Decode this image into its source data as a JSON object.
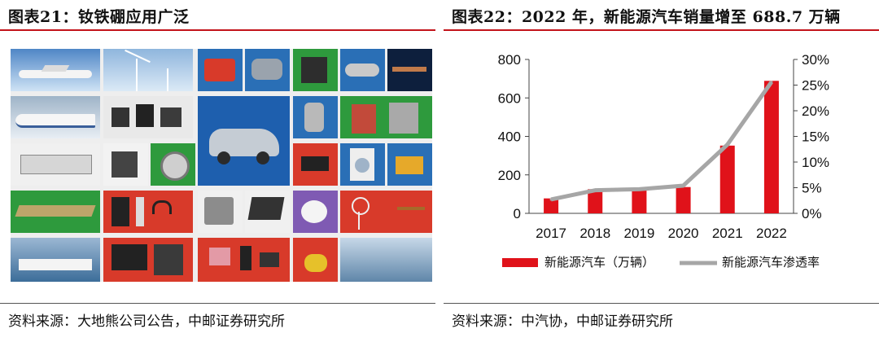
{
  "left_panel": {
    "title": "图表21：钕铁硼应用广泛",
    "source": "资料来源：大地熊公司公告，中邮证券研究所"
  },
  "right_panel": {
    "title": "图表22：2022 年，新能源汽车销量增至 688.7 万辆",
    "source": "资料来源：中汽协，中邮证券研究所"
  },
  "colors": {
    "accent": "#c3131b",
    "bar": "#e0121a",
    "line": "#a6a6a6"
  },
  "chart_data": {
    "type": "bar+line",
    "categories": [
      "2017",
      "2018",
      "2019",
      "2020",
      "2021",
      "2022"
    ],
    "series": [
      {
        "name": "新能源汽车（万辆）",
        "type": "bar",
        "axis": "left",
        "values": [
          77.7,
          125.6,
          120.6,
          136.7,
          352.1,
          688.7
        ]
      },
      {
        "name": "新能源汽车渗透率",
        "type": "line",
        "axis": "right",
        "values": [
          2.7,
          4.5,
          4.7,
          5.4,
          13.4,
          25.6
        ]
      }
    ],
    "y_left": {
      "ticks": [
        "0",
        "200",
        "400",
        "600",
        "800"
      ],
      "ylim": [
        0,
        800
      ]
    },
    "y_right": {
      "ticks": [
        "0%",
        "5%",
        "10%",
        "15%",
        "20%",
        "25%",
        "30%"
      ],
      "ylim": [
        0,
        30
      ]
    },
    "legend": "bottom",
    "grid": false
  }
}
